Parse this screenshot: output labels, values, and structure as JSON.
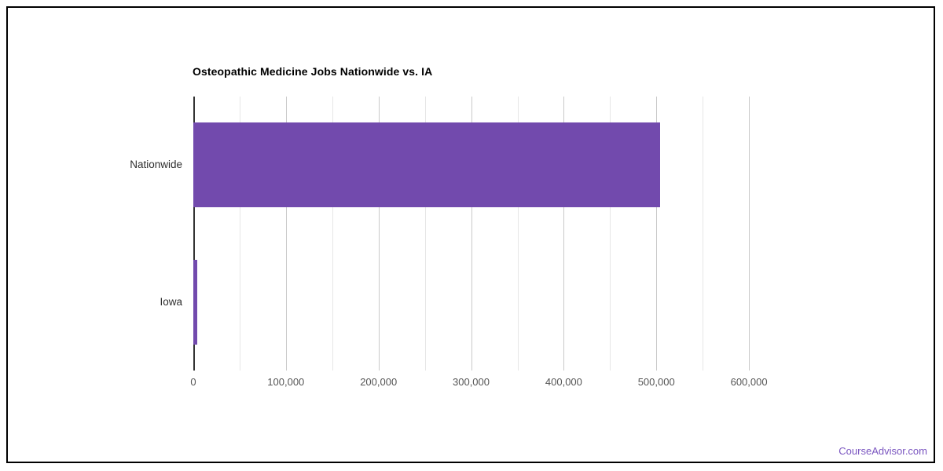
{
  "page": {
    "background": "#ffffff",
    "border_color": "#000000"
  },
  "chart_data": {
    "type": "bar",
    "orientation": "horizontal",
    "title": "Osteopathic Medicine Jobs Nationwide vs. IA",
    "title_color": "#000000",
    "categories": [
      "Nationwide",
      "Iowa"
    ],
    "values": [
      504000,
      4000
    ],
    "xlabel": "",
    "ylabel": "",
    "xlim": [
      0,
      650000
    ],
    "x_major_tick": 100000,
    "x_minor_tick": 50000,
    "x_tick_labels": [
      "0",
      "100,000",
      "200,000",
      "300,000",
      "400,000",
      "500,000",
      "600,000"
    ],
    "bar_color": "#724aad",
    "grid": true,
    "minor_gridline_color": "#e6e6e6",
    "major_gridline_color": "#c9c9c9",
    "axis_line_color": "#333333",
    "legend": "none"
  },
  "footer": {
    "brand": "CourseAdvisor.com",
    "color": "#7a55c0"
  }
}
